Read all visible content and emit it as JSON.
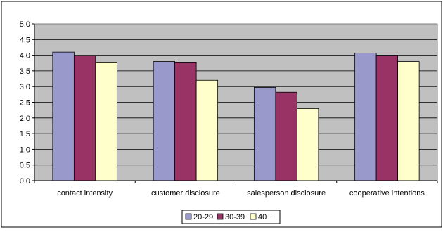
{
  "chart_data": {
    "type": "bar",
    "categories": [
      "contact intensity",
      "customer disclosure",
      "salesperson disclosure",
      "cooperative intentions"
    ],
    "series": [
      {
        "name": "20-29",
        "values": [
          4.1,
          3.8,
          2.97,
          4.07
        ],
        "color": "#9999cc"
      },
      {
        "name": "30-39",
        "values": [
          3.98,
          3.78,
          2.82,
          4.0
        ],
        "color": "#993366"
      },
      {
        "name": "40+",
        "values": [
          3.78,
          3.2,
          2.3,
          3.8
        ],
        "color": "#ffffcc"
      }
    ],
    "ylim": [
      0,
      5
    ],
    "yticks": [
      "0.0",
      "0.5",
      "1.0",
      "1.5",
      "2.0",
      "2.5",
      "3.0",
      "3.5",
      "4.0",
      "4.5",
      "5.0"
    ],
    "grid": true,
    "plot_background": "#c0c0c0",
    "legend_position": "bottom"
  }
}
